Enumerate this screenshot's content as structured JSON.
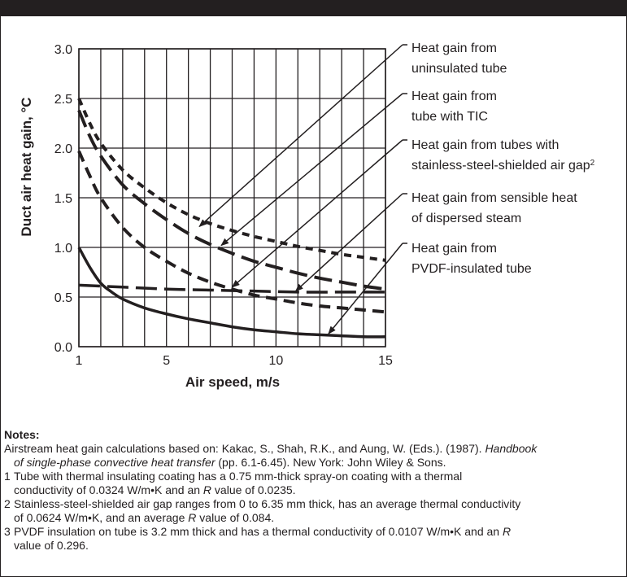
{
  "chart_data": {
    "type": "line",
    "title": "",
    "xlabel": "Air speed, m/s",
    "ylabel": "Duct air heat gain, °C",
    "xlim": [
      1,
      15
    ],
    "ylim": [
      0,
      3.0
    ],
    "xticks": [
      1,
      5,
      10,
      15
    ],
    "xtick_labels": [
      "1",
      "5",
      "10",
      "15"
    ],
    "yticks": [
      0,
      0.5,
      1.0,
      1.5,
      2.0,
      2.5,
      3.0
    ],
    "ytick_labels": [
      "0.0",
      "0.5",
      "1.0",
      "1.5",
      "2.0",
      "2.5",
      "3.0"
    ],
    "vertical_gridlines": [
      1,
      2,
      3,
      4,
      5,
      6,
      7,
      8,
      9,
      10,
      11,
      12,
      13,
      14,
      15
    ],
    "grid": true,
    "series": [
      {
        "id": "uninsulated",
        "style": "short-dash",
        "x": [
          1,
          1.5,
          2,
          3,
          4,
          5,
          6,
          7,
          8,
          9,
          10,
          11,
          12,
          13,
          14,
          15
        ],
        "y": [
          2.5,
          2.25,
          2.05,
          1.78,
          1.6,
          1.45,
          1.33,
          1.24,
          1.17,
          1.11,
          1.06,
          1.01,
          0.97,
          0.93,
          0.9,
          0.87
        ]
      },
      {
        "id": "tic",
        "style": "long-dash",
        "x": [
          1,
          1.5,
          2,
          3,
          4,
          5,
          6,
          7,
          8,
          9,
          10,
          11,
          12,
          13,
          14,
          15
        ],
        "y": [
          2.38,
          2.12,
          1.92,
          1.63,
          1.44,
          1.28,
          1.14,
          1.03,
          0.94,
          0.86,
          0.8,
          0.74,
          0.69,
          0.65,
          0.61,
          0.58
        ]
      },
      {
        "id": "air-gap",
        "style": "dash",
        "x": [
          1,
          1.5,
          2,
          3,
          4,
          5,
          6,
          7,
          8,
          9,
          10,
          11,
          12,
          13,
          14,
          15
        ],
        "y": [
          1.97,
          1.72,
          1.5,
          1.2,
          1.0,
          0.86,
          0.74,
          0.65,
          0.58,
          0.52,
          0.48,
          0.44,
          0.41,
          0.39,
          0.37,
          0.35
        ]
      },
      {
        "id": "dispersed-steam",
        "style": "long-dash-thick",
        "x": [
          1,
          3,
          5,
          7,
          9,
          11,
          13,
          15
        ],
        "y": [
          0.62,
          0.6,
          0.58,
          0.57,
          0.56,
          0.55,
          0.55,
          0.55
        ]
      },
      {
        "id": "pvdf",
        "style": "solid",
        "x": [
          1,
          1.5,
          2,
          2.5,
          3,
          4,
          5,
          6,
          7,
          8,
          9,
          10,
          11,
          12,
          13,
          14,
          15
        ],
        "y": [
          1.0,
          0.8,
          0.64,
          0.55,
          0.48,
          0.39,
          0.33,
          0.28,
          0.24,
          0.2,
          0.17,
          0.15,
          0.13,
          0.12,
          0.11,
          0.1,
          0.1
        ]
      }
    ],
    "annotations": [
      {
        "lines": [
          "Heat gain from",
          "uninsulated tube"
        ],
        "target": [
          6.5,
          1.21
        ]
      },
      {
        "lines": [
          "Heat gain from",
          "tube with TIC"
        ],
        "target": [
          7.5,
          1.02
        ]
      },
      {
        "lines": [
          "Heat gain from tubes with",
          "stainless-steel-shielded air gap"
        ],
        "sup": "2",
        "target": [
          8.0,
          0.6
        ]
      },
      {
        "lines": [
          "Heat gain from sensible heat",
          "of dispersed steam"
        ],
        "target": [
          10.9,
          0.56
        ]
      },
      {
        "lines": [
          "Heat gain from",
          "PVDF-insulated tube"
        ],
        "target": [
          12.4,
          0.13
        ]
      }
    ]
  },
  "notes": {
    "heading": "Notes:",
    "reference_pre": "Airstream heat gain calculations based on: Kakac, S., Shah, R.K., and Aung, W. (Eds.). (1987). ",
    "reference_title_1": "Handbook",
    "reference_title_2": "of single-phase convective heat transfer",
    "reference_post": " (pp. 6.1-6.45). New York: John Wiley & Sons.",
    "note1_num": "1",
    "note1_a": "Tube with thermal insulating coating has a 0.75 mm-thick spray-on coating with a thermal",
    "note1_b": "conductivity of 0.0324 W/m•K and an ",
    "note1_r": "R",
    "note1_c": " value of 0.0235.",
    "note2_num": "2",
    "note2_a": "Stainless-steel-shielded air gap ranges from 0 to 6.35 mm thick, has an average thermal conductivity",
    "note2_b": "of 0.0624 W/m•K, and an average ",
    "note2_r": "R",
    "note2_c": " value of 0.084.",
    "note3_num": "3",
    "note3_a": "PVDF insulation on tube is 3.2 mm thick and has a thermal conductivity of 0.0107 W/m•K and an ",
    "note3_r": "R",
    "note3_b": "value of 0.296."
  }
}
